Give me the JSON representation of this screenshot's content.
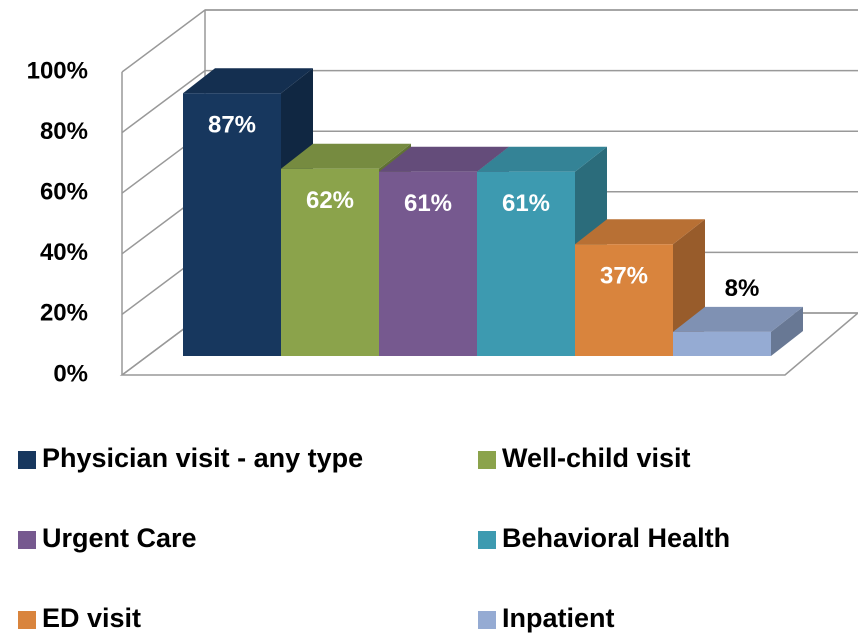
{
  "chart_data": {
    "type": "bar3d",
    "series": [
      {
        "name": "Physician visit - any type",
        "color": "#17375e",
        "values": [
          87
        ],
        "value_labels": [
          "87%"
        ]
      },
      {
        "name": "Well-child visit",
        "color": "#8ba34b",
        "values": [
          62
        ],
        "value_labels": [
          "62%"
        ]
      },
      {
        "name": "Urgent Care",
        "color": "#76598f",
        "values": [
          61
        ],
        "value_labels": [
          "61%"
        ]
      },
      {
        "name": "Behavioral Health",
        "color": "#3d9ab0",
        "values": [
          61
        ],
        "value_labels": [
          "61%"
        ]
      },
      {
        "name": "ED visit",
        "color": "#d9843d",
        "values": [
          37
        ],
        "value_labels": [
          "37%"
        ]
      },
      {
        "name": "Inpatient",
        "color": "#95abd3",
        "values": [
          8
        ],
        "value_labels": [
          "8%"
        ]
      }
    ],
    "ylim": [
      0,
      100
    ],
    "yticks": [
      {
        "value": 0,
        "label": "0%"
      },
      {
        "value": 20,
        "label": "20%"
      },
      {
        "value": 40,
        "label": "40%"
      },
      {
        "value": 60,
        "label": "60%"
      },
      {
        "value": 80,
        "label": "80%"
      },
      {
        "value": 100,
        "label": "100%"
      }
    ],
    "grid": true
  }
}
